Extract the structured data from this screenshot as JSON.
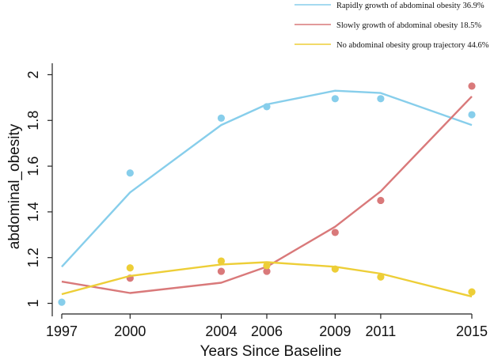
{
  "chart_data": {
    "type": "line",
    "title": "",
    "xlabel": "Years Since Baseline",
    "ylabel": "abdominal_obesity",
    "x_ticks": [
      1997,
      2000,
      2004,
      2006,
      2009,
      2011,
      2015
    ],
    "y_ticks": [
      1,
      1.2,
      1.4,
      1.6,
      1.8,
      2
    ],
    "y_tick_labels": [
      "1",
      "1.2",
      "1.4",
      "1.6",
      "1.8",
      "2"
    ],
    "xlim": [
      1997,
      2015
    ],
    "ylim": [
      0.95,
      2.05
    ],
    "grid": false,
    "legend_position": "top-right",
    "series": [
      {
        "name": "Rapidly growth of abdominal obesity 36.9%",
        "color": "#87CEEB",
        "fitted": [
          1.16,
          1.485,
          1.78,
          1.87,
          1.93,
          1.92,
          1.78
        ],
        "observed": [
          1.005,
          1.57,
          1.81,
          1.86,
          1.895,
          1.895,
          1.825
        ]
      },
      {
        "name": "Slowly growth of abdominal obesity 18.5%",
        "color": "#D9797A",
        "fitted": [
          1.095,
          1.045,
          1.09,
          1.16,
          1.335,
          1.49,
          1.905
        ],
        "observed": [
          null,
          1.11,
          1.14,
          1.14,
          1.31,
          1.45,
          1.95
        ]
      },
      {
        "name": "No abdominal obesity group trajectory 44.6%",
        "color": "#EDCE37",
        "fitted": [
          1.04,
          1.12,
          1.17,
          1.18,
          1.16,
          1.13,
          1.03
        ],
        "observed": [
          null,
          1.155,
          1.185,
          1.165,
          1.15,
          1.115,
          1.05
        ]
      }
    ]
  }
}
